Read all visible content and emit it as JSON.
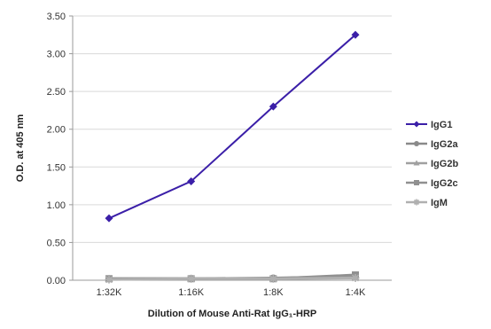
{
  "chart_data": {
    "type": "line",
    "title": "",
    "xlabel": "Dilution of Mouse Anti-Rat IgG₁-HRP",
    "ylabel": "O.D. at 405 nm",
    "categories": [
      "1:32K",
      "1:16K",
      "1:8K",
      "1:4K"
    ],
    "ylim": [
      0,
      3.5
    ],
    "yticks": [
      "0.00",
      "0.50",
      "1.00",
      "1.50",
      "2.00",
      "2.50",
      "3.00",
      "3.50"
    ],
    "grid": "horizontal",
    "legend_position": "right",
    "series": [
      {
        "name": "IgG1",
        "values": [
          0.82,
          1.31,
          2.3,
          3.25
        ],
        "color": "#3b1fa8",
        "marker": "diamond"
      },
      {
        "name": "IgG2a",
        "values": [
          0.02,
          0.02,
          0.03,
          0.05
        ],
        "color": "#8a8a8a",
        "marker": "circle"
      },
      {
        "name": "IgG2b",
        "values": [
          0.02,
          0.02,
          0.02,
          0.04
        ],
        "color": "#a0a0a0",
        "marker": "triangle"
      },
      {
        "name": "IgG2c",
        "values": [
          0.02,
          0.02,
          0.02,
          0.07
        ],
        "color": "#909090",
        "marker": "square"
      },
      {
        "name": "IgM",
        "values": [
          0.01,
          0.02,
          0.02,
          0.03
        ],
        "color": "#b0b0b0",
        "marker": "star"
      }
    ]
  }
}
